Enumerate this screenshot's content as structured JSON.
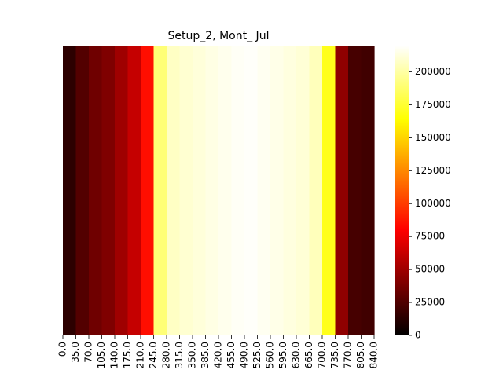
{
  "chart_data": {
    "type": "heatmap",
    "title": "Setup_2, Mont_ Jul",
    "colormap": "hot",
    "x_tick_labels": [
      "0.0",
      "35.0",
      "70.0",
      "105.0",
      "140.0",
      "175.0",
      "210.0",
      "245.0",
      "280.0",
      "315.0",
      "350.0",
      "385.0",
      "420.0",
      "455.0",
      "490.0",
      "525.0",
      "560.0",
      "595.0",
      "630.0",
      "665.0",
      "700.0",
      "735.0",
      "770.0",
      "805.0",
      "840.0"
    ],
    "x_range": [
      0,
      840
    ],
    "colorbar": {
      "range": [
        0,
        220000
      ],
      "ticks": [
        0,
        25000,
        50000,
        75000,
        100000,
        125000,
        150000,
        175000,
        200000
      ]
    },
    "columns": [
      {
        "x": 0,
        "value": 14000
      },
      {
        "x": 35,
        "value": 26000
      },
      {
        "x": 70,
        "value": 35000
      },
      {
        "x": 105,
        "value": 40000
      },
      {
        "x": 140,
        "value": 50000
      },
      {
        "x": 175,
        "value": 62000
      },
      {
        "x": 210,
        "value": 85000
      },
      {
        "x": 245,
        "value": 190000
      },
      {
        "x": 280,
        "value": 207000
      },
      {
        "x": 315,
        "value": 210000
      },
      {
        "x": 350,
        "value": 212000
      },
      {
        "x": 385,
        "value": 214000
      },
      {
        "x": 420,
        "value": 216000
      },
      {
        "x": 455,
        "value": 218000
      },
      {
        "x": 490,
        "value": 219000
      },
      {
        "x": 525,
        "value": 217000
      },
      {
        "x": 560,
        "value": 215000
      },
      {
        "x": 595,
        "value": 213000
      },
      {
        "x": 630,
        "value": 211000
      },
      {
        "x": 665,
        "value": 205000
      },
      {
        "x": 700,
        "value": 170000
      },
      {
        "x": 735,
        "value": 45000
      },
      {
        "x": 770,
        "value": 22000
      },
      {
        "x": 805,
        "value": 20000
      }
    ]
  }
}
